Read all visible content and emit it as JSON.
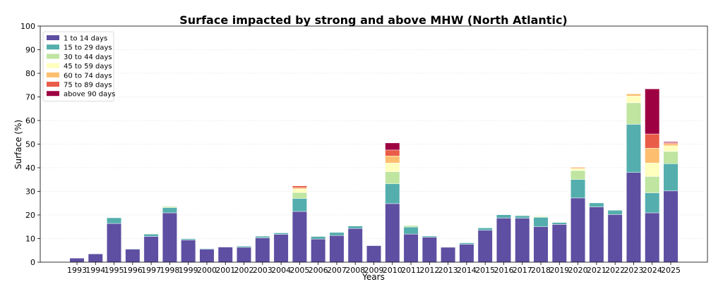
{
  "chart_data": {
    "type": "bar",
    "stacked": true,
    "title": "Surface impacted by strong and above MHW (North Atlantic)",
    "xlabel": "Years",
    "ylabel": "Surface (%)",
    "ylim": [
      0,
      100
    ],
    "yticks": [
      0,
      10,
      20,
      30,
      40,
      50,
      60,
      70,
      80,
      90,
      100
    ],
    "grid": "horizontal dotted",
    "legend_position": "top-left",
    "categories": [
      "1993",
      "1994",
      "1995",
      "1996",
      "1997",
      "1998",
      "1999",
      "2000",
      "2001",
      "2002",
      "2003",
      "2004",
      "2005",
      "2006",
      "2007",
      "2008",
      "2009",
      "2010",
      "2011",
      "2012",
      "2013",
      "2014",
      "2015",
      "2016",
      "2017",
      "2018",
      "2019",
      "2020",
      "2021",
      "2022",
      "2023",
      "2024",
      "2025"
    ],
    "series": [
      {
        "name": "1 to 14 days",
        "color": "#5e4fa2",
        "values": [
          1.7,
          3.5,
          16.4,
          5.5,
          10.9,
          20.9,
          9.4,
          5.5,
          6.4,
          6.3,
          10.3,
          11.8,
          21.5,
          9.8,
          11.3,
          14.3,
          7.0,
          24.8,
          11.9,
          10.6,
          6.3,
          7.6,
          13.5,
          18.7,
          18.6,
          15.0,
          16.0,
          27.2,
          23.4,
          20.2,
          38.0,
          20.9,
          30.2
        ]
      },
      {
        "name": "15 to 29 days",
        "color": "#54aead",
        "values": [
          0.0,
          0.0,
          2.4,
          0.2,
          1.0,
          2.2,
          0.5,
          0.3,
          0.0,
          0.5,
          0.7,
          0.6,
          5.5,
          1.1,
          1.3,
          1.0,
          0.0,
          8.4,
          3.0,
          0.5,
          0.0,
          0.6,
          1.0,
          1.4,
          1.1,
          4.0,
          0.8,
          7.8,
          1.7,
          1.8,
          20.4,
          8.5,
          11.5
        ]
      },
      {
        "name": "30 to 44 days",
        "color": "#bfe5a0",
        "values": [
          0.0,
          0.0,
          0.0,
          0.0,
          0.2,
          0.5,
          0.0,
          0.0,
          0.0,
          0.0,
          0.0,
          0.0,
          2.5,
          0.2,
          0.2,
          0.2,
          0.0,
          5.1,
          0.6,
          0.1,
          0.0,
          0.0,
          0.0,
          0.0,
          0.2,
          0.3,
          0.2,
          3.8,
          0.0,
          0.1,
          9.1,
          6.9,
          5.2
        ]
      },
      {
        "name": "45 to 59 days",
        "color": "#ffffbe",
        "values": [
          0.0,
          0.0,
          0.0,
          0.0,
          0.0,
          0.0,
          0.0,
          0.0,
          0.0,
          0.0,
          0.0,
          0.0,
          1.5,
          0.0,
          0.0,
          0.0,
          0.0,
          3.7,
          0.0,
          0.0,
          0.0,
          0.0,
          0.0,
          0.0,
          0.0,
          0.3,
          0.0,
          0.8,
          0.0,
          0.0,
          2.9,
          5.7,
          2.4
        ]
      },
      {
        "name": "60 to 74 days",
        "color": "#fdbf6f",
        "values": [
          0.0,
          0.0,
          0.0,
          0.0,
          0.0,
          0.0,
          0.0,
          0.0,
          0.0,
          0.0,
          0.0,
          0.0,
          0.5,
          0.0,
          0.0,
          0.0,
          0.0,
          3.0,
          0.0,
          0.0,
          0.0,
          0.0,
          0.0,
          0.0,
          0.0,
          0.0,
          0.0,
          0.5,
          0.0,
          0.0,
          0.9,
          6.3,
          0.9
        ]
      },
      {
        "name": "75 to 89 days",
        "color": "#e95c47",
        "values": [
          0.0,
          0.0,
          0.0,
          0.0,
          0.0,
          0.0,
          0.0,
          0.0,
          0.0,
          0.0,
          0.0,
          0.0,
          0.8,
          0.0,
          0.0,
          0.0,
          0.0,
          2.5,
          0.0,
          0.0,
          0.0,
          0.0,
          0.0,
          0.0,
          0.0,
          0.0,
          0.0,
          0.2,
          0.0,
          0.0,
          0.0,
          6.0,
          0.4
        ]
      },
      {
        "name": "above 90 days",
        "color": "#9e0142",
        "values": [
          0.0,
          0.0,
          0.0,
          0.0,
          0.0,
          0.0,
          0.0,
          0.0,
          0.0,
          0.0,
          0.0,
          0.0,
          0.0,
          0.0,
          0.0,
          0.0,
          0.0,
          3.0,
          0.0,
          0.0,
          0.0,
          0.0,
          0.0,
          0.0,
          0.0,
          0.0,
          0.0,
          0.0,
          0.0,
          0.0,
          0.0,
          19.1,
          0.4
        ]
      }
    ]
  }
}
